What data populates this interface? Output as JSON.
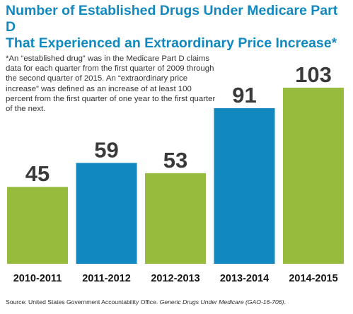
{
  "chart_data": {
    "type": "bar",
    "title_lines": [
      "Number of Established Drugs Under Medicare Part D",
      "That Experienced an Extraordinary Price Increase*"
    ],
    "note": "*An “established drug” was in the Medicare Part D claims data for each quarter from the first quarter of 2009 through the second quarter of 2015. An “extraordinary price increase” was defined as an increase of at least 100 percent from the first quarter of one year to the first quarter of the next.",
    "categories": [
      "2010-2011",
      "2011-2012",
      "2012-2013",
      "2013-2014",
      "2014-2015"
    ],
    "values": [
      45,
      59,
      53,
      91,
      103
    ],
    "data_labels": [
      "45",
      "59",
      "53",
      "91",
      "103"
    ],
    "bar_colors": [
      "#97bb3c",
      "#1188bf",
      "#97bb3c",
      "#1188bf",
      "#97bb3c"
    ],
    "ylim": [
      0,
      103
    ],
    "grid": false,
    "legend": "none",
    "xlabel": "",
    "ylabel": ""
  },
  "source": {
    "prefix": "Source: United States Government Accountability Office. ",
    "title": "Generic Drugs Under Medicare (GAO-16-706)",
    "suffix": "."
  },
  "colors": {
    "title": "#1188bf",
    "label": "#3a3a3a",
    "category_label": "#111111"
  }
}
